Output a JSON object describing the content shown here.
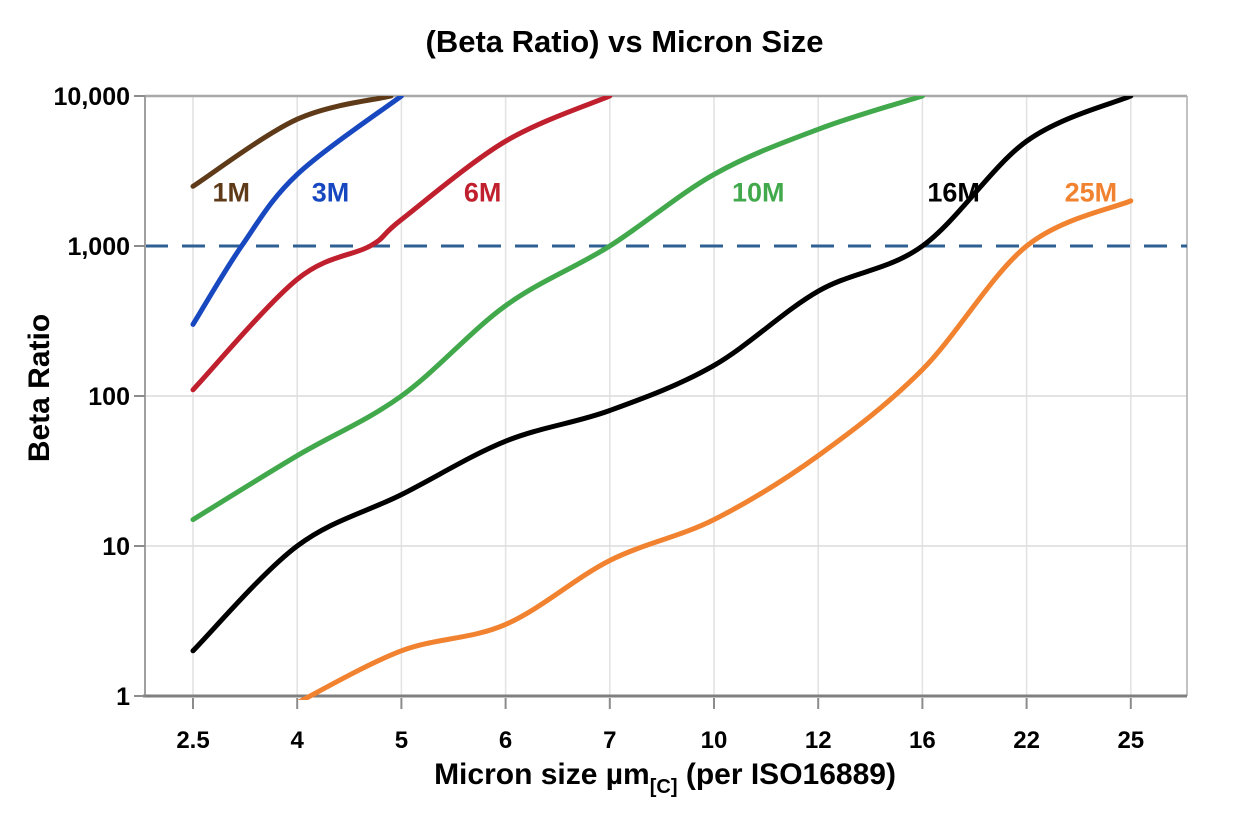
{
  "chart_data": {
    "type": "line",
    "title": "(Beta Ratio) vs Micron Size",
    "ylabel": "Beta Ratio",
    "xlabel_main": "Micron size µm",
    "xlabel_sub": "[C]",
    "xlabel_rest": " (per ISO16889)",
    "y_scale": "log",
    "ylim": [
      1,
      10000
    ],
    "grid": true,
    "legend_position": "inline-labels",
    "x_ticks": [
      2.5,
      4,
      5,
      6,
      7,
      10,
      12,
      16,
      22,
      25
    ],
    "x_tick_labels": [
      "2.5",
      "4",
      "5",
      "6",
      "7",
      "10",
      "12",
      "16",
      "22",
      "25"
    ],
    "y_ticks": [
      1,
      10,
      100,
      1000,
      10000
    ],
    "y_tick_labels": [
      "1",
      "10",
      "100",
      "1,000",
      "10,000"
    ],
    "reference_line": {
      "y": 1000,
      "style": "dashed",
      "color": "#2E6093"
    },
    "series": [
      {
        "name": "1M",
        "color": "#5E3A18",
        "label": {
          "text": "1M",
          "x": 3.05,
          "y": 2300
        },
        "points": [
          [
            2.5,
            2500
          ],
          [
            4,
            7000
          ],
          [
            4.9,
            10000
          ]
        ]
      },
      {
        "name": "3M",
        "color": "#1848C0",
        "label": {
          "text": "3M",
          "x": 4.32,
          "y": 2300
        },
        "points": [
          [
            2.5,
            300
          ],
          [
            3.2,
            1000
          ],
          [
            4,
            3000
          ],
          [
            5,
            10000
          ]
        ]
      },
      {
        "name": "6M",
        "color": "#C0202E",
        "label": {
          "text": "6M",
          "x": 5.78,
          "y": 2300
        },
        "points": [
          [
            2.5,
            110
          ],
          [
            4,
            600
          ],
          [
            4.7,
            1000
          ],
          [
            5,
            1500
          ],
          [
            6,
            5000
          ],
          [
            7,
            10000
          ]
        ]
      },
      {
        "name": "10M",
        "color": "#41A94C",
        "label": {
          "text": "10M",
          "x": 10.85,
          "y": 2300
        },
        "points": [
          [
            2.5,
            15
          ],
          [
            4,
            40
          ],
          [
            5,
            100
          ],
          [
            6,
            400
          ],
          [
            7,
            1000
          ],
          [
            10,
            3000
          ],
          [
            12,
            6000
          ],
          [
            16,
            10000
          ]
        ]
      },
      {
        "name": "16M",
        "color": "#000000",
        "label": {
          "text": "16M",
          "x": 17.8,
          "y": 2300
        },
        "points": [
          [
            2.5,
            2
          ],
          [
            4,
            10
          ],
          [
            5,
            22
          ],
          [
            6,
            50
          ],
          [
            7,
            80
          ],
          [
            10,
            160
          ],
          [
            12,
            500
          ],
          [
            16,
            1000
          ],
          [
            22,
            5000
          ],
          [
            25,
            10000
          ]
        ]
      },
      {
        "name": "25M",
        "color": "#F18230",
        "label": {
          "text": "25M",
          "x": 23.85,
          "y": 2300
        },
        "points": [
          [
            4,
            0.9
          ],
          [
            5,
            2
          ],
          [
            6,
            3
          ],
          [
            7,
            8
          ],
          [
            10,
            15
          ],
          [
            12,
            40
          ],
          [
            16,
            150
          ],
          [
            22,
            1000
          ],
          [
            25,
            2000
          ]
        ]
      }
    ]
  }
}
